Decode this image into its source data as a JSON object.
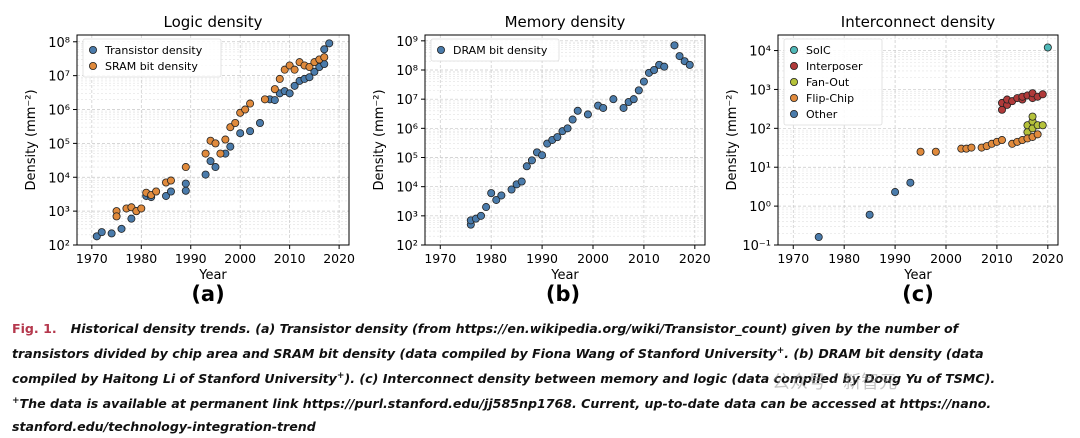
{
  "chart_data": [
    {
      "type": "scatter",
      "title": "Logic density",
      "xlabel": "Year",
      "ylabel": "Density (mm⁻²)",
      "xlim": [
        1967,
        2022
      ],
      "ylim_log10": [
        2,
        8.2
      ],
      "xticks": [
        1970,
        1980,
        1990,
        2000,
        2010,
        2020
      ],
      "yticks": [
        {
          "exp": 2,
          "label": "10²"
        },
        {
          "exp": 3,
          "label": "10³"
        },
        {
          "exp": 4,
          "label": "10⁴"
        },
        {
          "exp": 5,
          "label": "10⁵"
        },
        {
          "exp": 6,
          "label": "10⁶"
        },
        {
          "exp": 7,
          "label": "10⁷"
        },
        {
          "exp": 8,
          "label": "10⁸"
        }
      ],
      "yscale": "log",
      "grid": true,
      "legend_position": "top-left",
      "series": [
        {
          "name": "Transistor density",
          "color": "#4a7bab",
          "points": [
            [
              1971,
              180
            ],
            [
              1972,
              240
            ],
            [
              1974,
              220
            ],
            [
              1976,
              300
            ],
            [
              1978,
              600
            ],
            [
              1979,
              1000
            ],
            [
              1981,
              2800
            ],
            [
              1982,
              2600
            ],
            [
              1985,
              2800
            ],
            [
              1986,
              3800
            ],
            [
              1989,
              4000
            ],
            [
              1989,
              6500
            ],
            [
              1993,
              12000
            ],
            [
              1994,
              30000
            ],
            [
              1995,
              20000
            ],
            [
              1997,
              50000
            ],
            [
              1998,
              80000
            ],
            [
              2000,
              200000
            ],
            [
              2002,
              230000
            ],
            [
              2004,
              400000
            ],
            [
              2006,
              2000000
            ],
            [
              2007,
              1900000
            ],
            [
              2008,
              3000000
            ],
            [
              2009,
              3500000
            ],
            [
              2010,
              3000000
            ],
            [
              2011,
              5000000
            ],
            [
              2012,
              7000000
            ],
            [
              2013,
              8000000
            ],
            [
              2014,
              9000000
            ],
            [
              2015,
              13000000
            ],
            [
              2016,
              18000000
            ],
            [
              2017,
              22000000
            ],
            [
              2017,
              60000000
            ],
            [
              2018,
              90000000
            ]
          ]
        },
        {
          "name": "SRAM bit density",
          "color": "#e08a3c",
          "points": [
            [
              1975,
              1000
            ],
            [
              1975,
              700
            ],
            [
              1977,
              1200
            ],
            [
              1978,
              1300
            ],
            [
              1979,
              1000
            ],
            [
              1980,
              1200
            ],
            [
              1981,
              3500
            ],
            [
              1982,
              3000
            ],
            [
              1983,
              3800
            ],
            [
              1985,
              7000
            ],
            [
              1986,
              8000
            ],
            [
              1989,
              20000
            ],
            [
              1993,
              50000
            ],
            [
              1994,
              120000
            ],
            [
              1995,
              100000
            ],
            [
              1996,
              50000
            ],
            [
              1997,
              130000
            ],
            [
              1998,
              300000
            ],
            [
              1999,
              400000
            ],
            [
              2000,
              800000
            ],
            [
              2001,
              1000000
            ],
            [
              2002,
              1500000
            ],
            [
              2005,
              2000000
            ],
            [
              2007,
              4000000
            ],
            [
              2008,
              8000000
            ],
            [
              2009,
              15000000
            ],
            [
              2010,
              20000000
            ],
            [
              2011,
              15000000
            ],
            [
              2012,
              25000000
            ],
            [
              2013,
              20000000
            ],
            [
              2014,
              18000000
            ],
            [
              2015,
              25000000
            ],
            [
              2016,
              30000000
            ],
            [
              2017,
              35000000
            ]
          ]
        }
      ]
    },
    {
      "type": "scatter",
      "title": "Memory density",
      "xlabel": "Year",
      "ylabel": "Density (mm⁻²)",
      "xlim": [
        1967,
        2022
      ],
      "ylim_log10": [
        2,
        9.2
      ],
      "xticks": [
        1970,
        1980,
        1990,
        2000,
        2010,
        2020
      ],
      "yticks": [
        {
          "exp": 2,
          "label": "10²"
        },
        {
          "exp": 3,
          "label": "10³"
        },
        {
          "exp": 4,
          "label": "10⁴"
        },
        {
          "exp": 5,
          "label": "10⁵"
        },
        {
          "exp": 6,
          "label": "10⁶"
        },
        {
          "exp": 7,
          "label": "10⁷"
        },
        {
          "exp": 8,
          "label": "10⁸"
        },
        {
          "exp": 9,
          "label": "10⁹"
        }
      ],
      "yscale": "log",
      "grid": true,
      "legend_position": "top-left",
      "series": [
        {
          "name": "DRAM bit density",
          "color": "#4a7bab",
          "points": [
            [
              1976,
              500
            ],
            [
              1976,
              700
            ],
            [
              1977,
              800
            ],
            [
              1978,
              1000
            ],
            [
              1979,
              2000
            ],
            [
              1980,
              6000
            ],
            [
              1981,
              3500
            ],
            [
              1982,
              5000
            ],
            [
              1984,
              8000
            ],
            [
              1985,
              12000
            ],
            [
              1986,
              15000
            ],
            [
              1987,
              50000
            ],
            [
              1988,
              80000
            ],
            [
              1989,
              150000
            ],
            [
              1990,
              120000
            ],
            [
              1991,
              300000
            ],
            [
              1992,
              400000
            ],
            [
              1993,
              500000
            ],
            [
              1994,
              800000
            ],
            [
              1995,
              1000000
            ],
            [
              1996,
              2000000
            ],
            [
              1997,
              4000000
            ],
            [
              1999,
              3000000
            ],
            [
              2001,
              6000000
            ],
            [
              2002,
              5000000
            ],
            [
              2004,
              10000000
            ],
            [
              2006,
              5000000
            ],
            [
              2007,
              8000000
            ],
            [
              2008,
              10000000
            ],
            [
              2009,
              20000000
            ],
            [
              2010,
              40000000
            ],
            [
              2011,
              80000000
            ],
            [
              2012,
              100000000
            ],
            [
              2013,
              150000000
            ],
            [
              2014,
              130000000
            ],
            [
              2016,
              700000000
            ],
            [
              2017,
              300000000
            ],
            [
              2018,
              200000000
            ],
            [
              2019,
              150000000
            ]
          ]
        }
      ]
    },
    {
      "type": "scatter",
      "title": "Interconnect density",
      "xlabel": "Year",
      "ylabel": "Density (mm⁻²)",
      "xlim": [
        1967,
        2022
      ],
      "ylim_log10": [
        -1,
        4.4
      ],
      "xticks": [
        1970,
        1980,
        1990,
        2000,
        2010,
        2020
      ],
      "yticks": [
        {
          "exp": -1,
          "label": "10⁻¹"
        },
        {
          "exp": 0,
          "label": "10⁰"
        },
        {
          "exp": 1,
          "label": "10¹"
        },
        {
          "exp": 2,
          "label": "10²"
        },
        {
          "exp": 3,
          "label": "10³"
        },
        {
          "exp": 4,
          "label": "10⁴"
        }
      ],
      "yscale": "log",
      "grid": true,
      "legend_position": "top-left",
      "series": [
        {
          "name": "SoIC",
          "color": "#4fb8b8",
          "points": [
            [
              2020,
              12000
            ]
          ]
        },
        {
          "name": "Interposer",
          "color": "#b03a3a",
          "points": [
            [
              2011,
              300
            ],
            [
              2011,
              450
            ],
            [
              2012,
              400
            ],
            [
              2012,
              550
            ],
            [
              2013,
              500
            ],
            [
              2014,
              600
            ],
            [
              2015,
              550
            ],
            [
              2015,
              650
            ],
            [
              2016,
              700
            ],
            [
              2017,
              600
            ],
            [
              2017,
              800
            ],
            [
              2018,
              650
            ],
            [
              2019,
              750
            ]
          ]
        },
        {
          "name": "Fan-Out",
          "color": "#b5c23a",
          "points": [
            [
              2016,
              80
            ],
            [
              2016,
              120
            ],
            [
              2017,
              100
            ],
            [
              2017,
              150
            ],
            [
              2017,
              200
            ],
            [
              2018,
              120
            ],
            [
              2019,
              120
            ]
          ]
        },
        {
          "name": "Flip-Chip",
          "color": "#e08a3c",
          "points": [
            [
              1995,
              25
            ],
            [
              1998,
              25
            ],
            [
              2003,
              30
            ],
            [
              2004,
              30
            ],
            [
              2005,
              32
            ],
            [
              2007,
              32
            ],
            [
              2008,
              35
            ],
            [
              2009,
              40
            ],
            [
              2010,
              45
            ],
            [
              2011,
              50
            ],
            [
              2013,
              40
            ],
            [
              2014,
              45
            ],
            [
              2015,
              50
            ],
            [
              2016,
              55
            ],
            [
              2017,
              60
            ],
            [
              2018,
              70
            ]
          ]
        },
        {
          "name": "Other",
          "color": "#4a7bab",
          "points": [
            [
              1975,
              0.16
            ],
            [
              1985,
              0.6
            ],
            [
              1990,
              2.3
            ],
            [
              1993,
              4
            ]
          ]
        }
      ]
    }
  ],
  "panel_labels": [
    "(a)",
    "(b)",
    "(c)"
  ],
  "caption": {
    "fig_label": "Fig. 1.",
    "line1": "Historical density trends. (a) Transistor density (from https://en.wikipedia.org/wiki/Transistor_count) given by the number of",
    "line2": "transistors divided by chip area and SRAM bit density (data compiled by Fiona Wang of Stanford University",
    "line2_end": ". (b) DRAM bit density (data",
    "line3": "compiled by Haitong Li of Stanford University",
    "line3_end": "). (c) Interconnect density between memory and logic (data compiled by Doug Yu of TSMC).",
    "line4": "The data is available at permanent link https://purl.stanford.edu/jj585np1768. Current, up-to-date data can be accessed at https://nano.",
    "line5": "stanford.edu/technology-integration-trend",
    "dagger": "+"
  },
  "watermark": "公众号 · 新智元"
}
